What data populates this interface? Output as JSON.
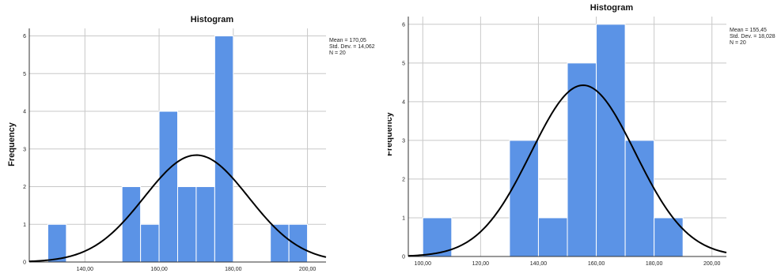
{
  "chart_data": [
    {
      "type": "histogram",
      "title": "Histogram",
      "ylabel": "Frequency",
      "xlim": [
        125,
        205
      ],
      "ylim": [
        0,
        6.2
      ],
      "x_ticks": [
        140,
        160,
        180,
        200
      ],
      "x_tick_labels": [
        "140,00",
        "160,00",
        "180,00",
        "200,00"
      ],
      "y_ticks": [
        0,
        1,
        2,
        3,
        4,
        5,
        6
      ],
      "y_tick_labels": [
        "0",
        "1",
        "2",
        "3",
        "4",
        "5",
        "6"
      ],
      "grid": true,
      "bins": [
        {
          "x0": 130,
          "x1": 135,
          "value": 1
        },
        {
          "x0": 135,
          "x1": 140,
          "value": 0
        },
        {
          "x0": 140,
          "x1": 145,
          "value": 0
        },
        {
          "x0": 145,
          "x1": 150,
          "value": 0
        },
        {
          "x0": 150,
          "x1": 155,
          "value": 2
        },
        {
          "x0": 155,
          "x1": 160,
          "value": 1
        },
        {
          "x0": 160,
          "x1": 165,
          "value": 4
        },
        {
          "x0": 165,
          "x1": 170,
          "value": 2
        },
        {
          "x0": 170,
          "x1": 175,
          "value": 2
        },
        {
          "x0": 175,
          "x1": 180,
          "value": 6
        },
        {
          "x0": 180,
          "x1": 185,
          "value": 0
        },
        {
          "x0": 185,
          "x1": 190,
          "value": 0
        },
        {
          "x0": 190,
          "x1": 195,
          "value": 1
        },
        {
          "x0": 195,
          "x1": 200,
          "value": 1
        }
      ],
      "normal_curve": {
        "mean": 170.05,
        "sd": 14.062,
        "bin_width": 5,
        "n": 20
      },
      "stats_text": [
        "Mean = 170,05",
        "Std. Dev. = 14,062",
        "N = 20"
      ]
    },
    {
      "type": "histogram",
      "title": "Histogram",
      "ylabel": "Frequency",
      "xlim": [
        95,
        205
      ],
      "ylim": [
        0,
        6.2
      ],
      "x_ticks": [
        100,
        120,
        140,
        160,
        180,
        200
      ],
      "x_tick_labels": [
        "100,00",
        "120,00",
        "140,00",
        "160,00",
        "180,00",
        "200,00"
      ],
      "y_ticks": [
        0,
        1,
        2,
        3,
        4,
        5,
        6
      ],
      "y_tick_labels": [
        "0",
        "1",
        "2",
        "3",
        "4",
        "5",
        "6"
      ],
      "grid": true,
      "bins": [
        {
          "x0": 100,
          "x1": 110,
          "value": 1
        },
        {
          "x0": 110,
          "x1": 120,
          "value": 0
        },
        {
          "x0": 120,
          "x1": 130,
          "value": 0
        },
        {
          "x0": 130,
          "x1": 140,
          "value": 3
        },
        {
          "x0": 140,
          "x1": 150,
          "value": 1
        },
        {
          "x0": 150,
          "x1": 160,
          "value": 5
        },
        {
          "x0": 160,
          "x1": 170,
          "value": 6
        },
        {
          "x0": 170,
          "x1": 180,
          "value": 3
        },
        {
          "x0": 180,
          "x1": 190,
          "value": 1
        }
      ],
      "normal_curve": {
        "mean": 155.45,
        "sd": 18.028,
        "bin_width": 10,
        "n": 20
      },
      "stats_text": [
        "Mean = 155,45",
        "Std. Dev. = 18,028",
        "N = 20"
      ]
    }
  ]
}
